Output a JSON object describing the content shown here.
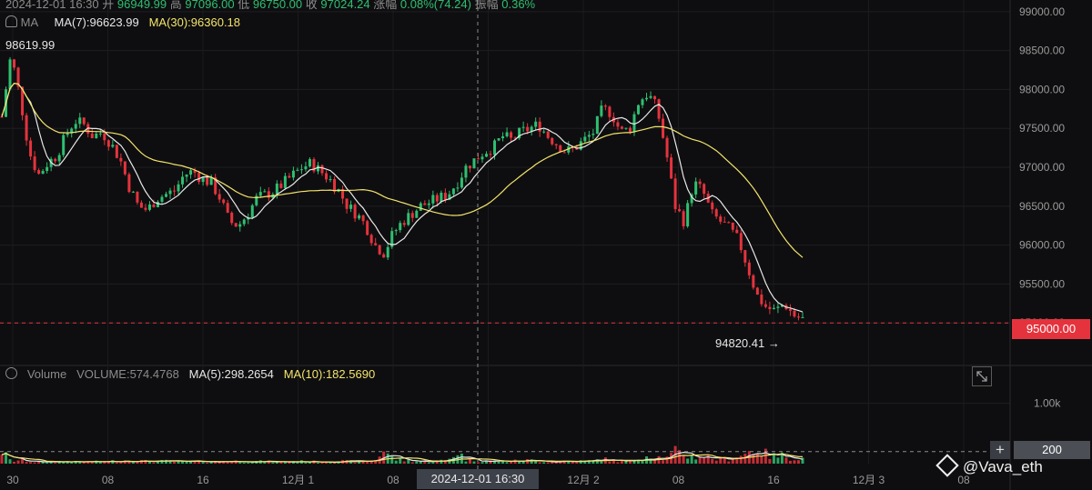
{
  "header": {
    "datetime": "2024-12-01 16:30",
    "open_label": "开",
    "open": "96949.99",
    "high_label": "高",
    "high": "97096.00",
    "low_label": "低",
    "low": "96750.00",
    "close_label": "收",
    "close": "97024.24",
    "change_label": "涨幅",
    "change": "0.08%(74.24)",
    "amp_label": "振幅",
    "amp": "0.36%"
  },
  "ma_legend": {
    "label": "MA",
    "ma7": "MA(7):96623.99",
    "ma30": "MA(30):96360.18"
  },
  "volume_legend": {
    "label": "Volume",
    "volume": "VOLUME:574.4768",
    "ma5": "MA(5):298.2654",
    "ma10": "MA(10):182.5690"
  },
  "labels": {
    "max_price": "98619.99",
    "min_price": "94820.41",
    "min_arrow": "→",
    "current_price": "95000.00",
    "volume_marker": "200",
    "plus": "+",
    "crosshair_time": "2024-12-01 16:30",
    "watermark": "@Vava_eth"
  },
  "colors": {
    "up": "#2fbf71",
    "down": "#e5333d",
    "ma_short": "#e8e8e8",
    "ma_long": "#f3e46b"
  },
  "chart_data": {
    "type": "candlestick",
    "price_axis": {
      "ticks": [
        "99000.00",
        "98500.00",
        "98000.00",
        "97500.00",
        "97000.00",
        "96500.00",
        "96000.00",
        "95500.00",
        "95000.00"
      ],
      "range": [
        94500,
        99150
      ]
    },
    "volume_axis": {
      "ticks": [
        "1.00k"
      ],
      "range": [
        0,
        1280
      ]
    },
    "time_axis": {
      "ticks": [
        "30",
        "08",
        "16",
        "12月 1",
        "08",
        "16",
        "12月 2",
        "08",
        "16",
        "12月 3",
        "08"
      ]
    },
    "price_path": [
      97650,
      98450,
      97900,
      97200,
      96900,
      97050,
      97150,
      97400,
      97600,
      97550,
      97400,
      97450,
      97300,
      97100,
      96750,
      96500,
      96450,
      96600,
      96650,
      96700,
      96900,
      96950,
      96850,
      96800,
      96600,
      96300,
      96250,
      96400,
      96600,
      96650,
      96700,
      96800,
      96900,
      97000,
      97050,
      96950,
      96850,
      96700,
      96500,
      96400,
      96250,
      96000,
      95900,
      96150,
      96300,
      96400,
      96500,
      96550,
      96600,
      96650,
      96800,
      97000,
      97100,
      97200,
      97250,
      97400,
      97350,
      97450,
      97500,
      97550,
      97400,
      97300,
      97200,
      97250,
      97350,
      97450,
      97750,
      97700,
      97450,
      97500,
      97850,
      97950,
      97750,
      97200,
      96500,
      96300,
      96800,
      96700,
      96400,
      96300,
      96200,
      96050,
      95700,
      95350,
      95200,
      95150,
      95250,
      95100,
      95050
    ],
    "volume_path": [
      220,
      40,
      60,
      40,
      30,
      30,
      35,
      40,
      30,
      30,
      35,
      30,
      40,
      50,
      60,
      50,
      40,
      40,
      45,
      35,
      30,
      30,
      40,
      35,
      40,
      45,
      40,
      40,
      40,
      35,
      30,
      30,
      30,
      40,
      35,
      35,
      40,
      45,
      40,
      35,
      40,
      60,
      240,
      80,
      60,
      50,
      40,
      40,
      45,
      60,
      220,
      70,
      60,
      50,
      45,
      40,
      45,
      50,
      60,
      45,
      40,
      45,
      40,
      40,
      45,
      50,
      80,
      60,
      40,
      40,
      100,
      150,
      120,
      80,
      200,
      160,
      120,
      140,
      90,
      80,
      90,
      120,
      200,
      260,
      160,
      120,
      140,
      100,
      90
    ],
    "current_price": 95000,
    "max_price": 98619.99,
    "min_price": 94820.41,
    "crosshair_time": "2024-12-01 16:30"
  }
}
